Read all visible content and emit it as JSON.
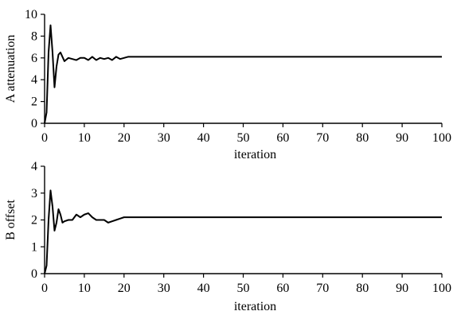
{
  "chart_data": [
    {
      "type": "line",
      "title": "",
      "xlabel": "iteration",
      "ylabel": "A attenuation",
      "xlim": [
        0,
        100
      ],
      "ylim": [
        0,
        10
      ],
      "x_ticks": [
        0,
        10,
        20,
        30,
        40,
        50,
        60,
        70,
        80,
        90,
        100
      ],
      "y_ticks": [
        0,
        2,
        4,
        6,
        8,
        10
      ],
      "grid": false,
      "series": [
        {
          "x": [
            0,
            0.5,
            1,
            1.5,
            2,
            2.5,
            3,
            3.5,
            4,
            4.5,
            5,
            6,
            7,
            8,
            9,
            10,
            11,
            12,
            13,
            14,
            15,
            16,
            17,
            18,
            19,
            20,
            21,
            22,
            23,
            30,
            40,
            50,
            60,
            70,
            80,
            90,
            100
          ],
          "y": [
            0,
            1.0,
            6.5,
            9.0,
            6.5,
            3.3,
            5.2,
            6.3,
            6.5,
            6.1,
            5.7,
            6.0,
            5.9,
            5.8,
            6.0,
            6.0,
            5.8,
            6.1,
            5.8,
            6.0,
            5.9,
            6.0,
            5.8,
            6.1,
            5.9,
            6.0,
            6.1,
            6.1,
            6.1,
            6.1,
            6.1,
            6.1,
            6.1,
            6.1,
            6.1,
            6.1,
            6.1
          ]
        }
      ]
    },
    {
      "type": "line",
      "title": "",
      "xlabel": "iteration",
      "ylabel": "B offset",
      "xlim": [
        0,
        100
      ],
      "ylim": [
        0,
        4
      ],
      "x_ticks": [
        0,
        10,
        20,
        30,
        40,
        50,
        60,
        70,
        80,
        90,
        100
      ],
      "y_ticks": [
        0,
        1,
        2,
        3,
        4
      ],
      "grid": false,
      "series": [
        {
          "x": [
            0,
            0.5,
            1,
            1.5,
            2,
            2.5,
            3,
            3.5,
            4,
            4.5,
            5,
            6,
            7,
            8,
            9,
            10,
            11,
            12,
            13,
            14,
            15,
            16,
            17,
            18,
            19,
            20,
            21,
            22,
            23,
            30,
            40,
            50,
            60,
            70,
            80,
            90,
            100
          ],
          "y": [
            0,
            0.3,
            2.0,
            3.1,
            2.5,
            1.6,
            1.9,
            2.4,
            2.2,
            1.9,
            1.95,
            2.0,
            2.0,
            2.2,
            2.1,
            2.2,
            2.25,
            2.1,
            2.0,
            2.0,
            2.0,
            1.9,
            1.95,
            2.0,
            2.05,
            2.1,
            2.1,
            2.1,
            2.1,
            2.1,
            2.1,
            2.1,
            2.1,
            2.1,
            2.1,
            2.1,
            2.1
          ]
        }
      ]
    }
  ]
}
